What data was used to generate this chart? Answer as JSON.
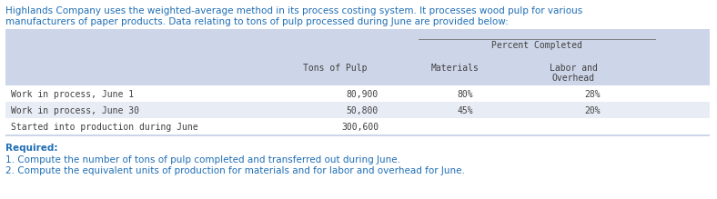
{
  "intro_line1": "Highlands Company uses the weighted-average method in its process costing system. It processes wood pulp for various",
  "intro_line2": "manufacturers of paper products. Data relating to tons of pulp processed during June are provided below:",
  "intro_color": "#1F6EB5",
  "table_bg": "#CDD5E8",
  "row0_bg": "#FFFFFF",
  "row1_bg": "#E8ECF5",
  "row2_bg": "#FFFFFF",
  "col_header_percent": "Percent Completed",
  "col_header_tons": "Tons of Pulp",
  "col_header_materials": "Materials",
  "col_header_labor_line1": "Labor and",
  "col_header_labor_line2": "Overhead",
  "rows": [
    {
      "label": "Work in process, June 1",
      "tons": "80,900",
      "materials": "80%",
      "labor": "28%"
    },
    {
      "label": "Work in process, June 30",
      "tons": "50,800",
      "materials": "45%",
      "labor": "20%"
    },
    {
      "label": "Started into production during June",
      "tons": "300,600",
      "materials": "",
      "labor": ""
    }
  ],
  "required_label": "Required:",
  "required_item1": "1. Compute the number of tons of pulp completed and transferred out during June.",
  "required_item2": "2. Compute the equivalent units of production for materials and for labor and overhead for June.",
  "required_color": "#1F6EB5",
  "text_color": "#404040",
  "fig_width": 7.88,
  "fig_height": 2.19,
  "dpi": 100
}
